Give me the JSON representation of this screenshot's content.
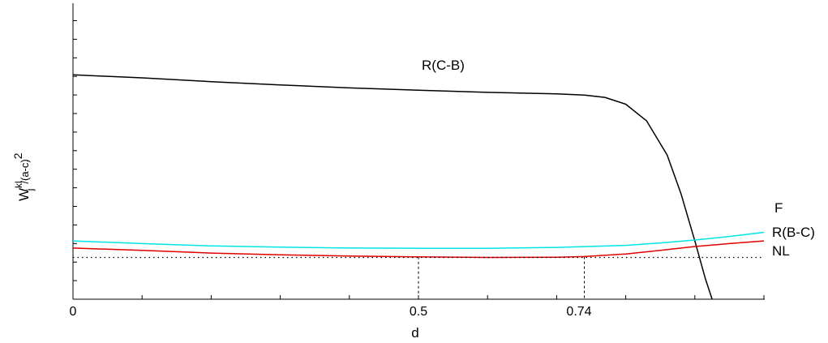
{
  "chart_data": {
    "type": "line",
    "xlabel": "d",
    "ylabel": {
      "base": "W",
      "sup1": "kl",
      "sub": "j",
      "rest": "/(a-c)",
      "sup2": "2",
      "tail": "."
    },
    "x_ticks": [
      {
        "value": 0,
        "label": "0"
      },
      {
        "value": 0.5,
        "label": "0.5"
      },
      {
        "value": 0.74,
        "label": "0.74"
      }
    ],
    "xlim": [
      0,
      1.0
    ],
    "ylim": [
      0,
      1.0
    ],
    "series": [
      {
        "name": "R(C-B)",
        "color": "#000000",
        "style": "solid",
        "x": [
          0,
          0.1,
          0.2,
          0.3,
          0.4,
          0.5,
          0.6,
          0.7,
          0.74,
          0.77,
          0.8,
          0.83,
          0.86,
          0.88,
          0.9,
          0.915,
          0.925
        ],
        "y": [
          0.758,
          0.748,
          0.735,
          0.724,
          0.714,
          0.706,
          0.699,
          0.694,
          0.69,
          0.682,
          0.659,
          0.603,
          0.487,
          0.356,
          0.197,
          0.071,
          0.0
        ]
      },
      {
        "name": "F",
        "color": "#00e5e5",
        "style": "solid",
        "x": [
          0,
          0.1,
          0.2,
          0.3,
          0.4,
          0.5,
          0.6,
          0.7,
          0.8,
          0.85,
          0.9,
          0.95,
          1.0
        ],
        "y": [
          0.197,
          0.188,
          0.18,
          0.176,
          0.173,
          0.172,
          0.172,
          0.175,
          0.182,
          0.19,
          0.2,
          0.212,
          0.226
        ]
      },
      {
        "name": "R(B-C)",
        "color": "#e00000",
        "style": "solid",
        "x": [
          0,
          0.1,
          0.2,
          0.3,
          0.4,
          0.5,
          0.6,
          0.7,
          0.74,
          0.8,
          0.85,
          0.9,
          0.95,
          1.0
        ],
        "y": [
          0.173,
          0.165,
          0.156,
          0.15,
          0.146,
          0.143,
          0.141,
          0.142,
          0.144,
          0.153,
          0.165,
          0.178,
          0.188,
          0.197
        ]
      },
      {
        "name": "NL",
        "color": "#000000",
        "style": "dotted",
        "x": [
          0,
          1.0
        ],
        "y": [
          0.141,
          0.141
        ]
      }
    ],
    "reference_lines": [
      {
        "x": 0.5,
        "y": 0.143,
        "style": "dashed"
      },
      {
        "x": 0.74,
        "y": 0.144,
        "style": "dashed"
      }
    ],
    "annotations": [
      {
        "text": "R(C-B)",
        "series": "R(C-B)"
      },
      {
        "text": "F",
        "series": "F"
      },
      {
        "text": "R(B-C)",
        "series": "R(B-C)"
      },
      {
        "text": "NL",
        "series": "NL"
      }
    ],
    "grid": false
  }
}
